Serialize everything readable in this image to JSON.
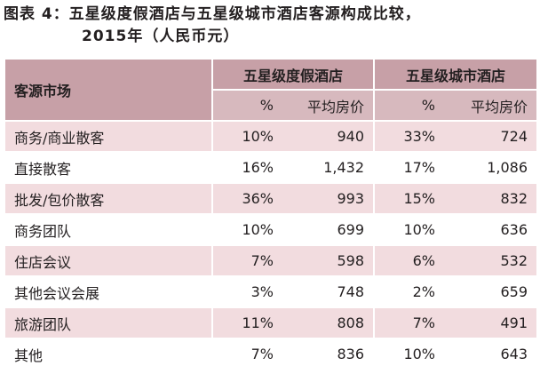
{
  "figure": {
    "title_line1": "图表 4：五星级度假酒店与五星级城市酒店客源构成比较，",
    "title_line2": "2015年（人民币元）"
  },
  "table": {
    "row_header": "客源市场",
    "groups": [
      "五星级度假酒店",
      "五星级城市酒店"
    ],
    "subheaders": [
      "%",
      "平均房价",
      "%",
      "平均房价"
    ],
    "rows": [
      {
        "market": "商务/商业散客",
        "resort_pct": "10%",
        "resort_adr": "940",
        "city_pct": "33%",
        "city_adr": "724"
      },
      {
        "market": "直接散客",
        "resort_pct": "16%",
        "resort_adr": "1,432",
        "city_pct": "17%",
        "city_adr": "1,086"
      },
      {
        "market": "批发/包价散客",
        "resort_pct": "36%",
        "resort_adr": "993",
        "city_pct": "15%",
        "city_adr": "832"
      },
      {
        "market": "商务团队",
        "resort_pct": "10%",
        "resort_adr": "699",
        "city_pct": "10%",
        "city_adr": "636"
      },
      {
        "market": "住店会议",
        "resort_pct": "7%",
        "resort_adr": "598",
        "city_pct": "6%",
        "city_adr": "532"
      },
      {
        "market": "其他会议会展",
        "resort_pct": "3%",
        "resort_adr": "748",
        "city_pct": "2%",
        "city_adr": "659"
      },
      {
        "market": "旅游团队",
        "resort_pct": "11%",
        "resort_adr": "808",
        "city_pct": "7%",
        "city_adr": "491"
      },
      {
        "market": "其他",
        "resort_pct": "7%",
        "resort_adr": "836",
        "city_pct": "10%",
        "city_adr": "643"
      }
    ]
  },
  "colors": {
    "header": "#c7a0a7",
    "subheader": "#d7b9be",
    "row_shaded": "#f2dcdf"
  }
}
